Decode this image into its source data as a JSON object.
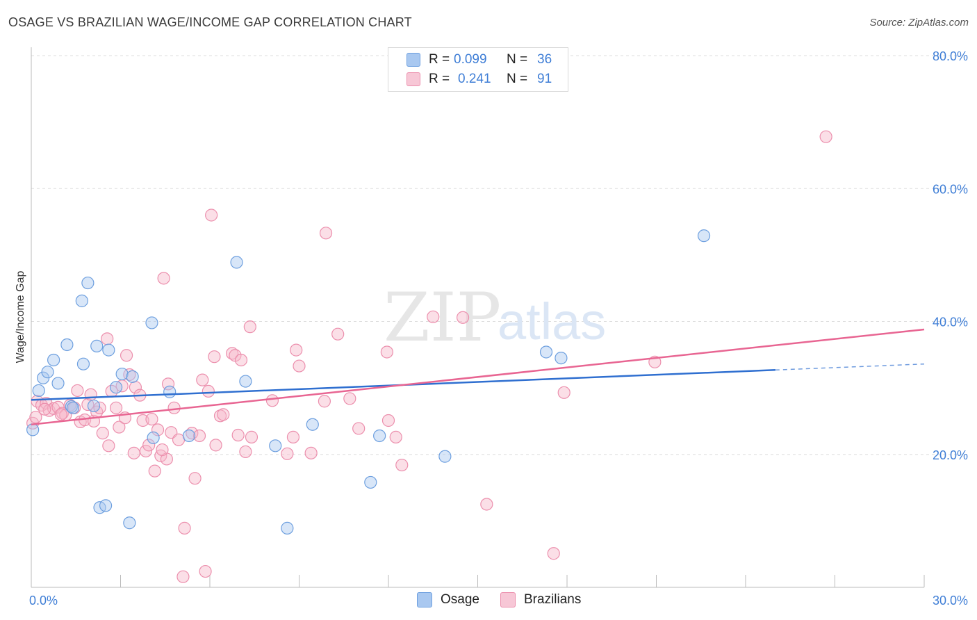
{
  "title": "OSAGE VS BRAZILIAN WAGE/INCOME GAP CORRELATION CHART",
  "source": "Source: ZipAtlas.com",
  "watermark": {
    "zip": "ZIP",
    "atlas": "atlas"
  },
  "legend": {
    "rows": [
      {
        "r_label": "R =",
        "r_value": "0.099",
        "n_label": "N =",
        "n_value": "36"
      },
      {
        "r_label": "R =",
        "r_value": "0.241",
        "n_label": "N =",
        "n_value": "91"
      }
    ]
  },
  "bottom_legend": [
    "Osage",
    "Brazilians"
  ],
  "colors": {
    "osage_fill": "#a9c8f0",
    "osage_stroke": "#6d9fdf",
    "osage_line": "#2f6fd0",
    "braz_fill": "#f7b8ca",
    "braz_stroke": "#ec8fad",
    "braz_line": "#e86592",
    "tick": "#3f7ed6",
    "grid": "#dddddd"
  },
  "chart_data": {
    "type": "scatter",
    "title": "OSAGE VS BRAZILIAN WAGE/INCOME GAP CORRELATION CHART",
    "xlabel": "",
    "ylabel": "Wage/Income Gap",
    "xlim": [
      0,
      30
    ],
    "ylim": [
      0,
      80
    ],
    "x_tick_labels": [
      "0.0%",
      "30.0%"
    ],
    "y_ticks": [
      20,
      40,
      60,
      80
    ],
    "y_tick_labels": [
      "20.0%",
      "40.0%",
      "60.0%",
      "80.0%"
    ],
    "series": [
      {
        "name": "Osage",
        "R": 0.099,
        "N": 36,
        "trend": {
          "x0": 0,
          "y0": 28.2,
          "x1": 25.0,
          "y1": 32.7,
          "dash_to_x": 30,
          "dash_to_y": 33.6
        },
        "points": [
          [
            0.25,
            29.6
          ],
          [
            0.4,
            31.5
          ],
          [
            0.55,
            32.4
          ],
          [
            0.75,
            34.2
          ],
          [
            0.9,
            30.7
          ],
          [
            1.2,
            36.5
          ],
          [
            1.35,
            27.2
          ],
          [
            1.7,
            43.1
          ],
          [
            1.75,
            33.6
          ],
          [
            1.9,
            45.8
          ],
          [
            2.1,
            27.3
          ],
          [
            2.2,
            36.3
          ],
          [
            2.3,
            12.0
          ],
          [
            2.5,
            12.3
          ],
          [
            2.6,
            35.7
          ],
          [
            2.85,
            30.1
          ],
          [
            3.05,
            32.1
          ],
          [
            3.3,
            9.7
          ],
          [
            3.4,
            31.7
          ],
          [
            4.05,
            39.8
          ],
          [
            4.1,
            22.5
          ],
          [
            4.65,
            29.4
          ],
          [
            5.3,
            22.8
          ],
          [
            6.9,
            48.9
          ],
          [
            7.2,
            31.0
          ],
          [
            8.2,
            21.3
          ],
          [
            8.6,
            8.9
          ],
          [
            9.45,
            24.5
          ],
          [
            11.4,
            15.8
          ],
          [
            11.7,
            22.8
          ],
          [
            13.9,
            19.7
          ],
          [
            17.3,
            35.4
          ],
          [
            17.8,
            34.5
          ],
          [
            22.6,
            52.9
          ],
          [
            0.05,
            23.7
          ],
          [
            1.4,
            27.0
          ]
        ]
      },
      {
        "name": "Brazilians",
        "R": 0.241,
        "N": 91,
        "trend": {
          "x0": 0,
          "y0": 24.5,
          "x1": 30.0,
          "y1": 38.8
        },
        "points": [
          [
            0.05,
            24.7
          ],
          [
            0.2,
            28.0
          ],
          [
            0.35,
            27.4
          ],
          [
            0.5,
            27.7
          ],
          [
            0.6,
            26.6
          ],
          [
            0.75,
            26.9
          ],
          [
            0.9,
            27.1
          ],
          [
            1.05,
            26.2
          ],
          [
            1.15,
            25.9
          ],
          [
            1.3,
            27.4
          ],
          [
            1.45,
            27.0
          ],
          [
            1.55,
            29.6
          ],
          [
            1.65,
            24.9
          ],
          [
            1.8,
            25.2
          ],
          [
            1.9,
            27.5
          ],
          [
            2.0,
            29.0
          ],
          [
            2.1,
            25.0
          ],
          [
            2.2,
            26.4
          ],
          [
            2.3,
            27.0
          ],
          [
            2.4,
            23.2
          ],
          [
            2.55,
            37.4
          ],
          [
            2.6,
            21.3
          ],
          [
            2.7,
            29.5
          ],
          [
            2.85,
            27.0
          ],
          [
            2.95,
            24.1
          ],
          [
            3.05,
            30.3
          ],
          [
            3.15,
            25.5
          ],
          [
            3.2,
            34.9
          ],
          [
            3.3,
            32.0
          ],
          [
            3.45,
            20.2
          ],
          [
            3.5,
            30.1
          ],
          [
            3.65,
            28.9
          ],
          [
            3.75,
            25.1
          ],
          [
            3.85,
            20.5
          ],
          [
            3.95,
            21.4
          ],
          [
            4.05,
            25.3
          ],
          [
            4.15,
            17.5
          ],
          [
            4.25,
            23.7
          ],
          [
            4.35,
            19.8
          ],
          [
            4.45,
            46.5
          ],
          [
            4.55,
            19.3
          ],
          [
            4.6,
            30.6
          ],
          [
            4.7,
            23.3
          ],
          [
            4.8,
            27.0
          ],
          [
            4.95,
            22.2
          ],
          [
            5.1,
            1.6
          ],
          [
            5.15,
            8.9
          ],
          [
            5.4,
            23.2
          ],
          [
            5.5,
            16.4
          ],
          [
            5.65,
            22.8
          ],
          [
            5.75,
            31.2
          ],
          [
            5.85,
            2.4
          ],
          [
            5.95,
            29.5
          ],
          [
            6.05,
            56.0
          ],
          [
            6.15,
            34.7
          ],
          [
            6.2,
            21.4
          ],
          [
            6.35,
            25.8
          ],
          [
            6.45,
            26.0
          ],
          [
            6.75,
            35.2
          ],
          [
            6.85,
            34.9
          ],
          [
            6.95,
            22.9
          ],
          [
            7.05,
            34.2
          ],
          [
            7.2,
            20.4
          ],
          [
            7.35,
            39.2
          ],
          [
            7.4,
            22.6
          ],
          [
            8.1,
            28.1
          ],
          [
            8.6,
            20.1
          ],
          [
            8.8,
            22.6
          ],
          [
            8.9,
            35.7
          ],
          [
            9.0,
            33.3
          ],
          [
            9.4,
            20.2
          ],
          [
            9.85,
            28.0
          ],
          [
            9.9,
            53.3
          ],
          [
            10.3,
            38.1
          ],
          [
            10.7,
            28.4
          ],
          [
            11.0,
            23.9
          ],
          [
            11.95,
            35.4
          ],
          [
            12.0,
            25.1
          ],
          [
            12.25,
            22.6
          ],
          [
            12.45,
            18.4
          ],
          [
            13.5,
            40.7
          ],
          [
            14.5,
            40.6
          ],
          [
            15.3,
            12.5
          ],
          [
            17.55,
            5.1
          ],
          [
            17.9,
            29.3
          ],
          [
            20.95,
            33.9
          ],
          [
            26.7,
            67.8
          ],
          [
            0.15,
            25.6
          ],
          [
            0.45,
            26.8
          ],
          [
            1.0,
            26.0
          ],
          [
            4.4,
            20.7
          ]
        ]
      }
    ]
  }
}
